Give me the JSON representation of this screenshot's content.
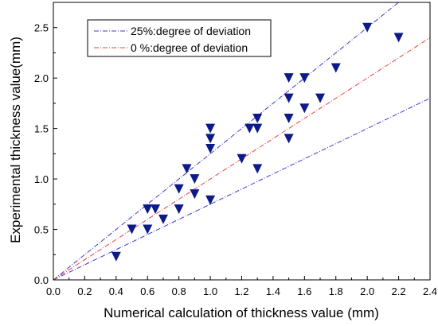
{
  "chart_data": {
    "type": "scatter",
    "title": "",
    "xlabel": "Numerical calculation of thickness value (mm)",
    "ylabel": "Experimental thickness value(mm)",
    "xlim": [
      0.0,
      2.4
    ],
    "ylim": [
      0.0,
      2.75
    ],
    "x_ticks": [
      "0.0",
      "0.2",
      "0.4",
      "0.6",
      "0.8",
      "1.0",
      "1.2",
      "1.4",
      "1.6",
      "1.8",
      "2.0",
      "2.2",
      "2.4"
    ],
    "y_ticks": [
      "0.0",
      "0.5",
      "1.0",
      "1.5",
      "2.0",
      "2.5"
    ],
    "grid": false,
    "legend_position": "top-left",
    "legend": [
      {
        "label": "25%:degree of deviation",
        "color": "#3b3bc8"
      },
      {
        "label": "0 %:degree of deviation",
        "color": "#e8413c"
      }
    ],
    "reference_lines": [
      {
        "name": "25%:degree of deviation",
        "slope": 1.25,
        "color": "#3b3bc8"
      },
      {
        "name": "25%:degree of deviation",
        "slope": 0.75,
        "color": "#3b3bc8"
      },
      {
        "name": "0 %:degree of deviation",
        "slope": 1.0,
        "color": "#e8413c"
      }
    ],
    "series": [
      {
        "marker": "down-triangle",
        "color": "#0d1a8a",
        "points": [
          [
            0.4,
            0.23
          ],
          [
            0.5,
            0.5
          ],
          [
            0.6,
            0.7
          ],
          [
            0.6,
            0.5
          ],
          [
            0.65,
            0.7
          ],
          [
            0.7,
            0.6
          ],
          [
            0.8,
            0.7
          ],
          [
            0.8,
            0.9
          ],
          [
            0.85,
            1.1
          ],
          [
            0.9,
            1.0
          ],
          [
            0.9,
            0.85
          ],
          [
            1.0,
            1.5
          ],
          [
            1.0,
            1.4
          ],
          [
            1.0,
            1.3
          ],
          [
            1.0,
            0.79
          ],
          [
            1.2,
            1.2
          ],
          [
            1.25,
            1.5
          ],
          [
            1.3,
            1.6
          ],
          [
            1.3,
            1.5
          ],
          [
            1.3,
            1.1
          ],
          [
            1.5,
            2.0
          ],
          [
            1.5,
            1.8
          ],
          [
            1.5,
            1.6
          ],
          [
            1.5,
            1.4
          ],
          [
            1.6,
            2.0
          ],
          [
            1.6,
            1.7
          ],
          [
            1.7,
            1.8
          ],
          [
            1.8,
            2.1
          ],
          [
            2.0,
            2.5
          ],
          [
            2.2,
            2.4
          ]
        ]
      }
    ]
  }
}
